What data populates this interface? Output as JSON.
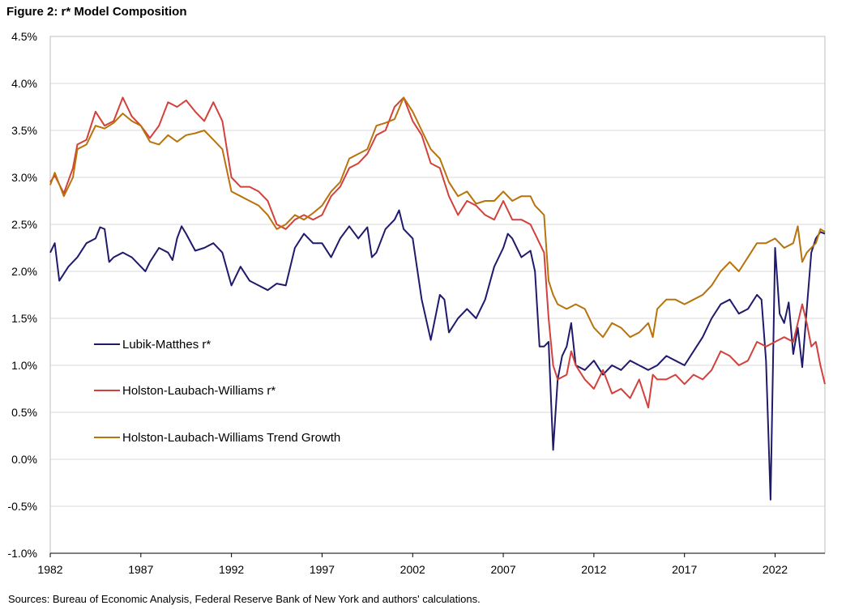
{
  "chart_data": {
    "type": "line",
    "title": "Figure 2: r* Model Composition",
    "source": "Sources: Bureau of Economic Analysis, Federal Reserve Bank of New York and authors' calculations.",
    "xlabel": "",
    "ylabel": "",
    "xlim": [
      1982.0,
      2024.75
    ],
    "ylim": [
      -1.0,
      4.5
    ],
    "y_ticks": [
      -1.0,
      -0.5,
      0.0,
      0.5,
      1.0,
      1.5,
      2.0,
      2.5,
      3.0,
      3.5,
      4.0,
      4.5
    ],
    "y_tick_labels": [
      "-1.0%",
      "-0.5%",
      "0.0%",
      "0.5%",
      "1.0%",
      "1.5%",
      "2.0%",
      "2.5%",
      "3.0%",
      "3.5%",
      "4.0%",
      "4.5%"
    ],
    "x_ticks": [
      1982,
      1987,
      1992,
      1997,
      2002,
      2007,
      2012,
      2017,
      2022
    ],
    "x_tick_labels": [
      "1982",
      "1987",
      "1992",
      "1997",
      "2002",
      "2007",
      "2012",
      "2017",
      "2022"
    ],
    "grid": "horizontal",
    "legend_position": "lower-left",
    "series": [
      {
        "name": "Lubik-Matthes r*",
        "color": "#1f1a6b",
        "points": [
          [
            1982.0,
            2.2
          ],
          [
            1982.25,
            2.3
          ],
          [
            1982.5,
            1.9
          ],
          [
            1983.0,
            2.05
          ],
          [
            1983.5,
            2.15
          ],
          [
            1984.0,
            2.3
          ],
          [
            1984.5,
            2.35
          ],
          [
            1984.75,
            2.47
          ],
          [
            1985.0,
            2.45
          ],
          [
            1985.25,
            2.1
          ],
          [
            1985.5,
            2.15
          ],
          [
            1986.0,
            2.2
          ],
          [
            1986.5,
            2.15
          ],
          [
            1987.0,
            2.05
          ],
          [
            1987.25,
            2.0
          ],
          [
            1987.5,
            2.1
          ],
          [
            1988.0,
            2.25
          ],
          [
            1988.5,
            2.2
          ],
          [
            1988.75,
            2.12
          ],
          [
            1989.0,
            2.35
          ],
          [
            1989.25,
            2.48
          ],
          [
            1989.5,
            2.4
          ],
          [
            1990.0,
            2.22
          ],
          [
            1990.5,
            2.25
          ],
          [
            1991.0,
            2.3
          ],
          [
            1991.5,
            2.2
          ],
          [
            1992.0,
            1.85
          ],
          [
            1992.5,
            2.05
          ],
          [
            1993.0,
            1.9
          ],
          [
            1993.5,
            1.85
          ],
          [
            1994.0,
            1.8
          ],
          [
            1994.5,
            1.87
          ],
          [
            1995.0,
            1.85
          ],
          [
            1995.5,
            2.25
          ],
          [
            1996.0,
            2.4
          ],
          [
            1996.5,
            2.3
          ],
          [
            1997.0,
            2.3
          ],
          [
            1997.5,
            2.15
          ],
          [
            1998.0,
            2.35
          ],
          [
            1998.5,
            2.48
          ],
          [
            1999.0,
            2.35
          ],
          [
            1999.5,
            2.47
          ],
          [
            1999.75,
            2.15
          ],
          [
            2000.0,
            2.2
          ],
          [
            2000.5,
            2.45
          ],
          [
            2001.0,
            2.55
          ],
          [
            2001.25,
            2.65
          ],
          [
            2001.5,
            2.45
          ],
          [
            2002.0,
            2.35
          ],
          [
            2002.5,
            1.7
          ],
          [
            2003.0,
            1.27
          ],
          [
            2003.5,
            1.75
          ],
          [
            2003.75,
            1.7
          ],
          [
            2004.0,
            1.35
          ],
          [
            2004.5,
            1.5
          ],
          [
            2005.0,
            1.6
          ],
          [
            2005.5,
            1.5
          ],
          [
            2006.0,
            1.7
          ],
          [
            2006.5,
            2.05
          ],
          [
            2007.0,
            2.25
          ],
          [
            2007.25,
            2.4
          ],
          [
            2007.5,
            2.35
          ],
          [
            2008.0,
            2.15
          ],
          [
            2008.5,
            2.22
          ],
          [
            2008.75,
            2.0
          ],
          [
            2009.0,
            1.2
          ],
          [
            2009.25,
            1.2
          ],
          [
            2009.5,
            1.25
          ],
          [
            2009.75,
            0.1
          ],
          [
            2010.0,
            0.85
          ],
          [
            2010.25,
            1.1
          ],
          [
            2010.5,
            1.2
          ],
          [
            2010.75,
            1.45
          ],
          [
            2011.0,
            1.0
          ],
          [
            2011.5,
            0.95
          ],
          [
            2012.0,
            1.05
          ],
          [
            2012.5,
            0.9
          ],
          [
            2013.0,
            1.0
          ],
          [
            2013.5,
            0.95
          ],
          [
            2014.0,
            1.05
          ],
          [
            2014.5,
            1.0
          ],
          [
            2015.0,
            0.95
          ],
          [
            2015.5,
            1.0
          ],
          [
            2016.0,
            1.1
          ],
          [
            2016.5,
            1.05
          ],
          [
            2017.0,
            1.0
          ],
          [
            2017.5,
            1.15
          ],
          [
            2018.0,
            1.3
          ],
          [
            2018.5,
            1.5
          ],
          [
            2019.0,
            1.65
          ],
          [
            2019.5,
            1.7
          ],
          [
            2020.0,
            1.55
          ],
          [
            2020.5,
            1.6
          ],
          [
            2021.0,
            1.75
          ],
          [
            2021.25,
            1.7
          ],
          [
            2021.5,
            1.05
          ],
          [
            2021.75,
            -0.43
          ],
          [
            2022.0,
            2.25
          ],
          [
            2022.25,
            1.55
          ],
          [
            2022.5,
            1.45
          ],
          [
            2022.75,
            1.67
          ],
          [
            2023.0,
            1.12
          ],
          [
            2023.25,
            1.4
          ],
          [
            2023.5,
            0.98
          ],
          [
            2023.75,
            1.6
          ],
          [
            2024.0,
            2.2
          ],
          [
            2024.25,
            2.35
          ],
          [
            2024.5,
            2.42
          ],
          [
            2024.75,
            2.4
          ]
        ]
      },
      {
        "name": "Holston-Laubach-Williams r*",
        "color": "#d2413c",
        "points": [
          [
            1982.0,
            2.95
          ],
          [
            1982.25,
            3.02
          ],
          [
            1982.75,
            2.83
          ],
          [
            1983.25,
            3.1
          ],
          [
            1983.5,
            3.35
          ],
          [
            1984.0,
            3.4
          ],
          [
            1984.5,
            3.7
          ],
          [
            1985.0,
            3.55
          ],
          [
            1985.5,
            3.6
          ],
          [
            1986.0,
            3.85
          ],
          [
            1986.5,
            3.65
          ],
          [
            1987.0,
            3.55
          ],
          [
            1987.5,
            3.42
          ],
          [
            1988.0,
            3.55
          ],
          [
            1988.5,
            3.8
          ],
          [
            1989.0,
            3.75
          ],
          [
            1989.5,
            3.82
          ],
          [
            1990.0,
            3.7
          ],
          [
            1990.5,
            3.6
          ],
          [
            1991.0,
            3.8
          ],
          [
            1991.5,
            3.6
          ],
          [
            1992.0,
            3.0
          ],
          [
            1992.5,
            2.9
          ],
          [
            1993.0,
            2.9
          ],
          [
            1993.5,
            2.85
          ],
          [
            1994.0,
            2.75
          ],
          [
            1994.5,
            2.5
          ],
          [
            1995.0,
            2.45
          ],
          [
            1995.5,
            2.55
          ],
          [
            1996.0,
            2.6
          ],
          [
            1996.5,
            2.55
          ],
          [
            1997.0,
            2.6
          ],
          [
            1997.5,
            2.8
          ],
          [
            1998.0,
            2.9
          ],
          [
            1998.5,
            3.1
          ],
          [
            1999.0,
            3.15
          ],
          [
            1999.5,
            3.25
          ],
          [
            2000.0,
            3.45
          ],
          [
            2000.5,
            3.5
          ],
          [
            2001.0,
            3.75
          ],
          [
            2001.5,
            3.85
          ],
          [
            2002.0,
            3.6
          ],
          [
            2002.5,
            3.45
          ],
          [
            2003.0,
            3.15
          ],
          [
            2003.5,
            3.1
          ],
          [
            2004.0,
            2.8
          ],
          [
            2004.5,
            2.6
          ],
          [
            2005.0,
            2.75
          ],
          [
            2005.5,
            2.7
          ],
          [
            2006.0,
            2.6
          ],
          [
            2006.5,
            2.55
          ],
          [
            2007.0,
            2.75
          ],
          [
            2007.5,
            2.55
          ],
          [
            2008.0,
            2.55
          ],
          [
            2008.5,
            2.5
          ],
          [
            2008.75,
            2.4
          ],
          [
            2009.0,
            2.3
          ],
          [
            2009.25,
            2.2
          ],
          [
            2009.5,
            1.5
          ],
          [
            2009.75,
            1.0
          ],
          [
            2010.0,
            0.85
          ],
          [
            2010.5,
            0.9
          ],
          [
            2010.75,
            1.15
          ],
          [
            2011.0,
            1.0
          ],
          [
            2011.5,
            0.85
          ],
          [
            2012.0,
            0.75
          ],
          [
            2012.5,
            0.95
          ],
          [
            2013.0,
            0.7
          ],
          [
            2013.5,
            0.75
          ],
          [
            2014.0,
            0.65
          ],
          [
            2014.5,
            0.85
          ],
          [
            2015.0,
            0.55
          ],
          [
            2015.25,
            0.9
          ],
          [
            2015.5,
            0.85
          ],
          [
            2016.0,
            0.85
          ],
          [
            2016.5,
            0.9
          ],
          [
            2017.0,
            0.8
          ],
          [
            2017.5,
            0.9
          ],
          [
            2018.0,
            0.85
          ],
          [
            2018.5,
            0.95
          ],
          [
            2019.0,
            1.15
          ],
          [
            2019.5,
            1.1
          ],
          [
            2020.0,
            1.0
          ],
          [
            2020.5,
            1.05
          ],
          [
            2021.0,
            1.25
          ],
          [
            2021.5,
            1.2
          ],
          [
            2022.0,
            1.25
          ],
          [
            2022.5,
            1.3
          ],
          [
            2023.0,
            1.25
          ],
          [
            2023.25,
            1.45
          ],
          [
            2023.5,
            1.65
          ],
          [
            2023.75,
            1.45
          ],
          [
            2024.0,
            1.2
          ],
          [
            2024.25,
            1.25
          ],
          [
            2024.5,
            1.0
          ],
          [
            2024.75,
            0.8
          ]
        ]
      },
      {
        "name": "Holston-Laubach-Williams Trend Growth",
        "color": "#b8730a",
        "points": [
          [
            1982.0,
            2.92
          ],
          [
            1982.25,
            3.05
          ],
          [
            1982.75,
            2.8
          ],
          [
            1983.25,
            3.0
          ],
          [
            1983.5,
            3.3
          ],
          [
            1984.0,
            3.35
          ],
          [
            1984.5,
            3.55
          ],
          [
            1985.0,
            3.52
          ],
          [
            1985.5,
            3.58
          ],
          [
            1986.0,
            3.68
          ],
          [
            1986.5,
            3.6
          ],
          [
            1987.0,
            3.55
          ],
          [
            1987.5,
            3.38
          ],
          [
            1988.0,
            3.35
          ],
          [
            1988.5,
            3.45
          ],
          [
            1989.0,
            3.38
          ],
          [
            1989.5,
            3.45
          ],
          [
            1990.0,
            3.47
          ],
          [
            1990.5,
            3.5
          ],
          [
            1991.0,
            3.4
          ],
          [
            1991.5,
            3.3
          ],
          [
            1992.0,
            2.85
          ],
          [
            1992.5,
            2.8
          ],
          [
            1993.0,
            2.75
          ],
          [
            1993.5,
            2.7
          ],
          [
            1994.0,
            2.6
          ],
          [
            1994.5,
            2.45
          ],
          [
            1995.0,
            2.5
          ],
          [
            1995.5,
            2.6
          ],
          [
            1996.0,
            2.55
          ],
          [
            1996.5,
            2.62
          ],
          [
            1997.0,
            2.7
          ],
          [
            1997.5,
            2.85
          ],
          [
            1998.0,
            2.95
          ],
          [
            1998.5,
            3.2
          ],
          [
            1999.0,
            3.25
          ],
          [
            1999.5,
            3.3
          ],
          [
            2000.0,
            3.55
          ],
          [
            2000.5,
            3.58
          ],
          [
            2001.0,
            3.62
          ],
          [
            2001.5,
            3.85
          ],
          [
            2002.0,
            3.7
          ],
          [
            2002.5,
            3.5
          ],
          [
            2003.0,
            3.3
          ],
          [
            2003.5,
            3.2
          ],
          [
            2004.0,
            2.95
          ],
          [
            2004.5,
            2.8
          ],
          [
            2005.0,
            2.85
          ],
          [
            2005.5,
            2.72
          ],
          [
            2006.0,
            2.75
          ],
          [
            2006.5,
            2.75
          ],
          [
            2007.0,
            2.85
          ],
          [
            2007.5,
            2.75
          ],
          [
            2008.0,
            2.8
          ],
          [
            2008.5,
            2.8
          ],
          [
            2008.75,
            2.7
          ],
          [
            2009.0,
            2.65
          ],
          [
            2009.25,
            2.6
          ],
          [
            2009.5,
            1.9
          ],
          [
            2009.75,
            1.75
          ],
          [
            2010.0,
            1.65
          ],
          [
            2010.5,
            1.6
          ],
          [
            2011.0,
            1.65
          ],
          [
            2011.5,
            1.6
          ],
          [
            2012.0,
            1.4
          ],
          [
            2012.5,
            1.3
          ],
          [
            2013.0,
            1.45
          ],
          [
            2013.5,
            1.4
          ],
          [
            2014.0,
            1.3
          ],
          [
            2014.5,
            1.35
          ],
          [
            2015.0,
            1.45
          ],
          [
            2015.25,
            1.3
          ],
          [
            2015.5,
            1.6
          ],
          [
            2016.0,
            1.7
          ],
          [
            2016.5,
            1.7
          ],
          [
            2017.0,
            1.65
          ],
          [
            2017.5,
            1.7
          ],
          [
            2018.0,
            1.75
          ],
          [
            2018.5,
            1.85
          ],
          [
            2019.0,
            2.0
          ],
          [
            2019.5,
            2.1
          ],
          [
            2020.0,
            2.0
          ],
          [
            2020.5,
            2.15
          ],
          [
            2021.0,
            2.3
          ],
          [
            2021.5,
            2.3
          ],
          [
            2022.0,
            2.35
          ],
          [
            2022.5,
            2.25
          ],
          [
            2023.0,
            2.3
          ],
          [
            2023.25,
            2.48
          ],
          [
            2023.5,
            2.1
          ],
          [
            2023.75,
            2.2
          ],
          [
            2024.0,
            2.25
          ],
          [
            2024.25,
            2.3
          ],
          [
            2024.5,
            2.45
          ],
          [
            2024.75,
            2.42
          ]
        ]
      }
    ]
  }
}
